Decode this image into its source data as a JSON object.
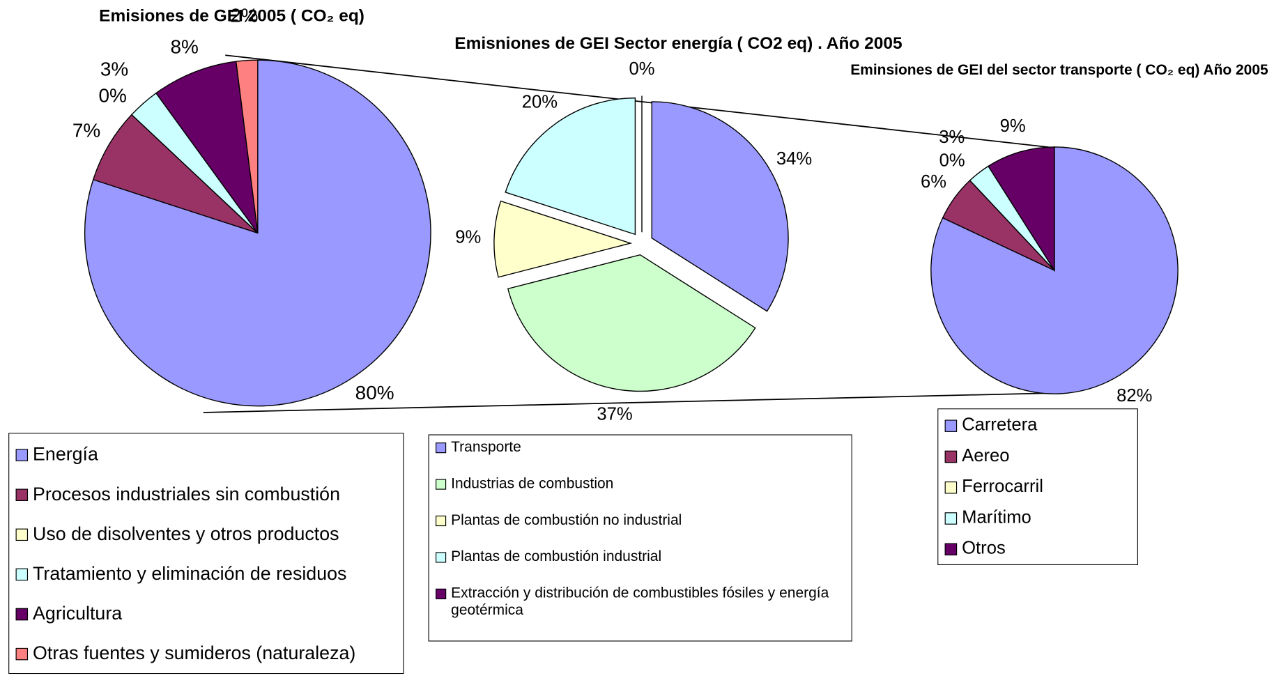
{
  "chart_data": [
    {
      "type": "pie",
      "title": "Emisiones de GEI 2005 ( CO₂ eq)",
      "categories": [
        "Energía",
        "Procesos industriales sin combustión",
        "Uso de disolventes y otros productos",
        "Tratamiento y eliminación de residuos",
        "Agricultura",
        "Otras fuentes y sumideros (naturaleza)"
      ],
      "values": [
        80,
        7,
        0,
        3,
        8,
        2
      ],
      "value_labels": [
        "80%",
        "7%",
        "0%",
        "3%",
        "8%",
        "2%"
      ],
      "colors": [
        "#9999ff",
        "#993366",
        "#ffffcc",
        "#ccffff",
        "#660066",
        "#ff8080"
      ],
      "exploded": false
    },
    {
      "type": "pie",
      "title": "Emisniones de GEI Sector energía ( CO2 eq) . Año 2005",
      "categories": [
        "Transporte",
        "Industrias de combustion",
        "Plantas de combustión no industrial",
        "Plantas de combustión industrial",
        "Extracción y distribución de combustibles fósiles y energía geotérmica"
      ],
      "values": [
        34,
        37,
        9,
        20,
        0
      ],
      "value_labels": [
        "34%",
        "37%",
        "9%",
        "20%",
        "0%"
      ],
      "colors": [
        "#9999ff",
        "#ccffcc",
        "#ffffcc",
        "#ccffff",
        "#660066"
      ],
      "exploded": true
    },
    {
      "type": "pie",
      "title": "Eminsiones de GEI del sector transporte ( CO₂ eq) Año 2005",
      "categories": [
        "Carretera",
        "Aereo",
        "Ferrocarril",
        "Marítimo",
        "Otros"
      ],
      "values": [
        82,
        6,
        0,
        3,
        9
      ],
      "value_labels": [
        "82%",
        "6%",
        "0%",
        "3%",
        "9%"
      ],
      "colors": [
        "#9999ff",
        "#993366",
        "#ffffcc",
        "#ccffff",
        "#660066"
      ],
      "exploded": false
    }
  ]
}
